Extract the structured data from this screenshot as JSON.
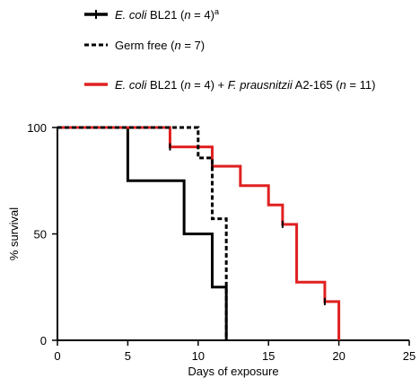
{
  "chart_data": {
    "type": "line",
    "subtype": "kaplan-meier step",
    "xlabel": "Days of exposure",
    "ylabel": "% survival",
    "xlim": [
      0,
      25
    ],
    "ylim": [
      0,
      100
    ],
    "xticks": [
      0,
      5,
      10,
      15,
      20,
      25
    ],
    "yticks": [
      0,
      50,
      100
    ],
    "grid": false,
    "legend_position": "top-left",
    "series": [
      {
        "name": "E. coli BL21 (n = 4)a",
        "legend_parts": [
          {
            "text": "E. coli",
            "italic": true
          },
          {
            "text": " BL21 (",
            "italic": false
          },
          {
            "text": "n",
            "italic": true
          },
          {
            "text": " = 4)",
            "italic": false
          },
          {
            "text": "a",
            "italic": false,
            "sup": true
          }
        ],
        "color": "#000000",
        "dash": "solid",
        "x": [
          0,
          5,
          9,
          11,
          12
        ],
        "y": [
          100,
          75,
          50,
          25,
          0
        ],
        "censor_x": [],
        "censor_y": []
      },
      {
        "name": "Germ free (n = 7)",
        "legend_parts": [
          {
            "text": "Germ free (",
            "italic": false
          },
          {
            "text": "n",
            "italic": true
          },
          {
            "text": " = 7)",
            "italic": false
          }
        ],
        "color": "#000000",
        "dash": "dashed",
        "x": [
          0,
          10,
          11,
          12
        ],
        "y": [
          100,
          85.7,
          57.1,
          0
        ],
        "censor_x": [],
        "censor_y": []
      },
      {
        "name": "E. coli BL21 (n = 4) + F. prausnitzii A2-165 (n = 11)",
        "legend_parts": [
          {
            "text": "E. coli",
            "italic": true
          },
          {
            "text": " BL21 (",
            "italic": false
          },
          {
            "text": "n",
            "italic": true
          },
          {
            "text": " = 4) + ",
            "italic": false
          },
          {
            "text": "F. prausnitzii",
            "italic": true
          },
          {
            "text": " A2-165 (",
            "italic": false
          },
          {
            "text": "n",
            "italic": true
          },
          {
            "text": " = 11)",
            "italic": false
          }
        ],
        "color": "#e02020",
        "dash": "solid",
        "x": [
          0,
          8,
          11,
          13,
          15,
          16,
          17,
          19,
          20
        ],
        "y": [
          100,
          90.9,
          81.8,
          72.7,
          63.6,
          54.5,
          27.3,
          18.2,
          0
        ],
        "censor_x": [
          8,
          11,
          16,
          19
        ],
        "censor_y": [
          90.9,
          81.8,
          54.5,
          18.2
        ]
      }
    ]
  }
}
